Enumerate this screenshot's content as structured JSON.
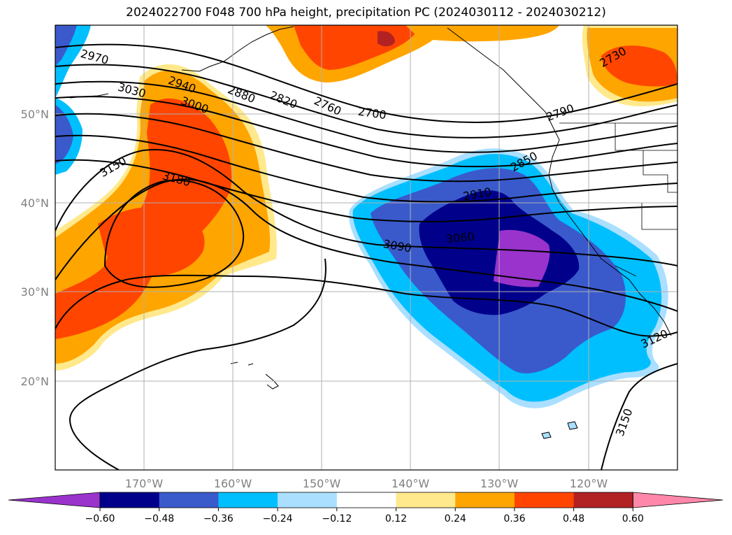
{
  "title": "2024022700 F048 700 hPa height, precipitation PC (2024030112 - 2024030212)",
  "map": {
    "lat_labels": [
      "50°N",
      "40°N",
      "30°N",
      "20°N"
    ],
    "lon_labels": [
      "170°W",
      "160°W",
      "150°W",
      "140°W",
      "130°W",
      "120°W"
    ],
    "contour_labels": [
      "2970",
      "3030",
      "2940",
      "3000",
      "2880",
      "2820",
      "2760",
      "2700",
      "2730",
      "2790",
      "2850",
      "2910",
      "3150",
      "3180",
      "3090",
      "3060",
      "3120",
      "3150"
    ]
  },
  "colorbar": {
    "ticks": [
      "−0.60",
      "−0.48",
      "−0.36",
      "−0.24",
      "−0.12",
      "0.12",
      "0.24",
      "0.36",
      "0.48",
      "0.60"
    ],
    "colors": [
      "#9933cc",
      "#00008b",
      "#3a5acc",
      "#00bfff",
      "#aadfff",
      "#ffffff",
      "#ffe98c",
      "#ffa500",
      "#ff4500",
      "#b22222",
      "#ff88aa"
    ]
  }
}
